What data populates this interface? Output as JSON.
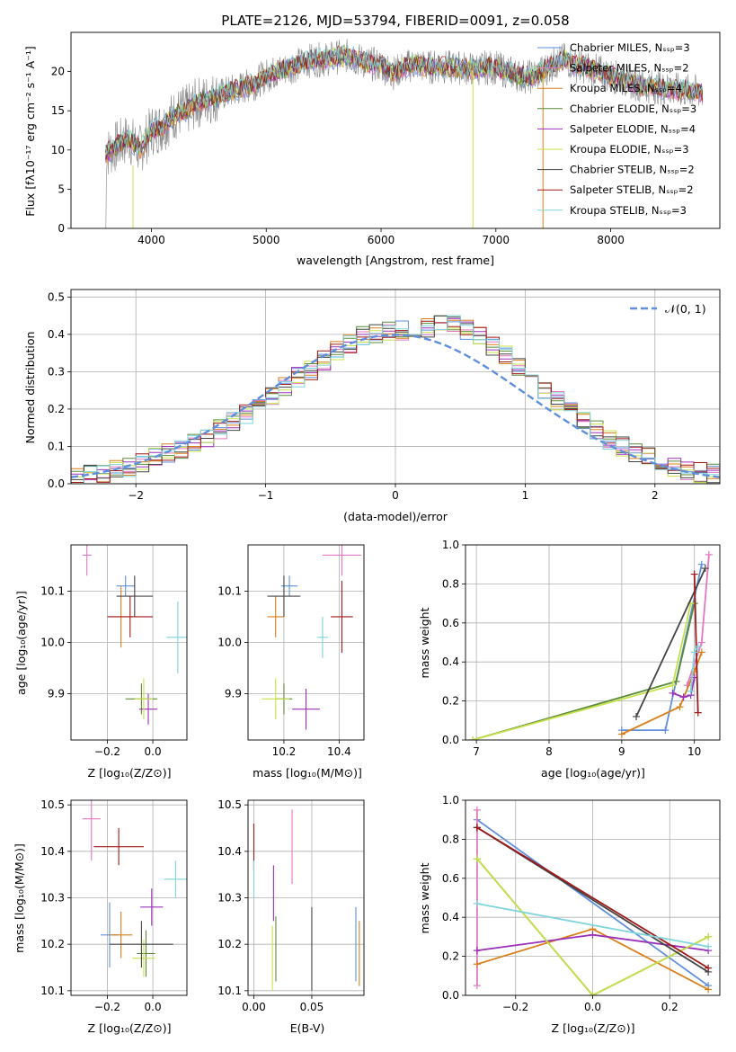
{
  "colors": {
    "palette": [
      "#5f8fdc",
      "#e377c2",
      "#d97f1a",
      "#5a8a3a",
      "#9b30b8",
      "#c8e04a",
      "#444444",
      "#a01818",
      "#7fd4dc"
    ],
    "spectrum_data": "#888888",
    "gaussian": "#5f8fdc",
    "grid": "#b0b0b0"
  },
  "spectrum": {
    "title": "PLATE=2126, MJD=53794, FIBERID=0091, z=0.058",
    "xlabel": "wavelength [Angstrom, rest frame]",
    "ylabel": "Flux [fλ10⁻¹⁷ erg cm⁻² s⁻¹ A⁻¹]",
    "legend": [
      "Chabrier MILES, Nₛₛₚ=3",
      "Salpeter MILES, Nₛₛₚ=2",
      "Kroupa MILES, Nₛₛₚ=4",
      "Chabrier ELODIE, Nₛₛₚ=3",
      "Salpeter ELODIE, Nₛₛₚ=4",
      "Kroupa ELODIE, Nₛₛₚ=3",
      "Chabrier STELIB, Nₛₛₚ=2",
      "Salpeter STELIB, Nₛₛₚ=2",
      "Kroupa STELIB, Nₛₛₚ=3"
    ]
  },
  "chart_data": [
    {
      "type": "line",
      "title": "PLATE=2126, MJD=53794, FIBERID=0091, z=0.058",
      "xlabel": "wavelength [Angstrom, rest frame]",
      "ylabel": "Flux [fλ10⁻¹⁷ erg cm⁻² s⁻¹ A⁻¹]",
      "xlim": [
        3300,
        8950
      ],
      "ylim": [
        0,
        25
      ],
      "xticks": [
        4000,
        5000,
        6000,
        7000,
        8000
      ],
      "yticks": [
        0,
        5,
        10,
        15,
        20
      ],
      "x": [
        3600,
        3700,
        3800,
        3900,
        4000,
        4100,
        4200,
        4300,
        4400,
        4500,
        4600,
        4700,
        4800,
        4900,
        5000,
        5100,
        5200,
        5300,
        5400,
        5500,
        5600,
        5700,
        5800,
        5900,
        6000,
        6100,
        6200,
        6300,
        6400,
        6500,
        6600,
        6700,
        6800,
        6900,
        7000,
        7100,
        7200,
        7300,
        7400,
        7500,
        7600,
        7700,
        7800,
        7900,
        8000,
        8100,
        8200,
        8300,
        8400,
        8500,
        8600,
        8700,
        8800
      ],
      "series": [
        {
          "name": "model",
          "values": [
            9.5,
            10.5,
            11.5,
            10,
            12.5,
            13,
            14.5,
            15,
            16,
            16.5,
            17,
            17.5,
            18,
            18.5,
            19.5,
            20,
            20.5,
            21,
            21.5,
            21.5,
            21.8,
            22,
            21.5,
            21,
            20.8,
            19.8,
            20.5,
            21,
            20.5,
            20.7,
            20.5,
            20.5,
            20.3,
            20.5,
            20.5,
            20,
            19.5,
            19.3,
            20,
            21,
            21.5,
            20.8,
            20.5,
            20,
            19.5,
            19,
            18.5,
            18.2,
            18,
            17.8,
            17.6,
            17.5,
            17.3
          ]
        }
      ],
      "legend": "top-right",
      "grid": false
    },
    {
      "type": "line",
      "xlabel": "(data-model)/error",
      "ylabel": "Normed distribution",
      "xlim": [
        -2.5,
        2.5
      ],
      "ylim": [
        0,
        0.52
      ],
      "xticks": [
        -2,
        -1,
        0,
        1,
        2
      ],
      "yticks": [
        0.0,
        0.1,
        0.2,
        0.3,
        0.4,
        0.5
      ],
      "legend_label": "𝒩(0, 1)",
      "legend": "top-right",
      "grid": true,
      "histogram_bins": [
        -2.6,
        -2.5,
        -2.4,
        -2.3,
        -2.2,
        -2.1,
        -2.0,
        -1.9,
        -1.8,
        -1.7,
        -1.6,
        -1.5,
        -1.4,
        -1.3,
        -1.2,
        -1.1,
        -1.0,
        -0.9,
        -0.8,
        -0.7,
        -0.6,
        -0.5,
        -0.4,
        -0.3,
        -0.2,
        -0.1,
        0.0,
        0.1,
        0.2,
        0.3,
        0.4,
        0.5,
        0.6,
        0.7,
        0.8,
        0.9,
        1.0,
        1.1,
        1.2,
        1.3,
        1.4,
        1.5,
        1.6,
        1.7,
        1.8,
        1.9,
        2.0,
        2.1,
        2.2,
        2.3,
        2.4,
        2.5
      ],
      "histogram_values": [
        0.015,
        0.02,
        0.025,
        0.03,
        0.035,
        0.045,
        0.055,
        0.07,
        0.08,
        0.095,
        0.11,
        0.125,
        0.145,
        0.165,
        0.185,
        0.205,
        0.235,
        0.26,
        0.285,
        0.305,
        0.33,
        0.355,
        0.375,
        0.395,
        0.405,
        0.41,
        0.41,
        0.415,
        0.42,
        0.43,
        0.43,
        0.41,
        0.395,
        0.365,
        0.345,
        0.315,
        0.285,
        0.255,
        0.225,
        0.195,
        0.17,
        0.145,
        0.12,
        0.1,
        0.085,
        0.07,
        0.055,
        0.045,
        0.035,
        0.03,
        0.025,
        0.02
      ]
    },
    {
      "type": "scatter",
      "xlabel": "Z [log₁₀(Z/Z⊙)]",
      "ylabel": "age  [log₁₀(age/yr)]",
      "xlim": [
        -0.36,
        0.15
      ],
      "ylim": [
        9.81,
        10.19
      ],
      "xticks": [
        -0.2,
        0.0
      ],
      "yticks": [
        9.9,
        10.0,
        10.1
      ],
      "points": [
        {
          "x": -0.12,
          "y": 10.11,
          "xerr": 0.04,
          "yerr": 0.02
        },
        {
          "x": -0.29,
          "y": 10.17,
          "xerr": 0.02,
          "yerr": 0.04
        },
        {
          "x": -0.14,
          "y": 10.05,
          "xerr": 0.06,
          "yerr": 0.06
        },
        {
          "x": -0.05,
          "y": 9.89,
          "xerr": 0.07,
          "yerr": 0.03
        },
        {
          "x": -0.02,
          "y": 9.87,
          "xerr": 0.04,
          "yerr": 0.03
        },
        {
          "x": -0.04,
          "y": 9.89,
          "xerr": 0.04,
          "yerr": 0.04
        },
        {
          "x": -0.08,
          "y": 10.09,
          "xerr": 0.08,
          "yerr": 0.04
        },
        {
          "x": -0.1,
          "y": 10.05,
          "xerr": 0.1,
          "yerr": 0.04
        },
        {
          "x": 0.11,
          "y": 10.01,
          "xerr": 0.05,
          "yerr": 0.07
        }
      ]
    },
    {
      "type": "scatter",
      "xlabel": "mass [log₁₀(M/M⊙)]",
      "xlim": [
        10.07,
        10.49
      ],
      "ylim": [
        9.81,
        10.19
      ],
      "xticks": [
        10.2,
        10.4
      ],
      "yticks": [
        9.9,
        10.0,
        10.1
      ],
      "points": [
        {
          "x": 10.22,
          "y": 10.11,
          "xerr": 0.03,
          "yerr": 0.02
        },
        {
          "x": 10.41,
          "y": 10.17,
          "xerr": 0.07,
          "yerr": 0.04
        },
        {
          "x": 10.17,
          "y": 10.05,
          "xerr": 0.03,
          "yerr": 0.04
        },
        {
          "x": 10.2,
          "y": 9.89,
          "xerr": 0.03,
          "yerr": 0.03
        },
        {
          "x": 10.28,
          "y": 9.87,
          "xerr": 0.05,
          "yerr": 0.04
        },
        {
          "x": 10.17,
          "y": 9.89,
          "xerr": 0.05,
          "yerr": 0.04
        },
        {
          "x": 10.2,
          "y": 10.09,
          "xerr": 0.06,
          "yerr": 0.04
        },
        {
          "x": 10.41,
          "y": 10.05,
          "xerr": 0.04,
          "yerr": 0.07
        },
        {
          "x": 10.34,
          "y": 10.01,
          "xerr": 0.02,
          "yerr": 0.04
        }
      ]
    },
    {
      "type": "line",
      "xlabel": "age  [log₁₀(age/yr)]",
      "ylabel": "mass weight",
      "xlim": [
        6.85,
        10.35
      ],
      "ylim": [
        0,
        1
      ],
      "xticks": [
        7,
        8,
        9,
        10
      ],
      "yticks": [
        0.0,
        0.2,
        0.4,
        0.6,
        0.8,
        1.0
      ],
      "grid": true,
      "series": [
        {
          "name": "Chabrier MILES",
          "x": [
            9.0,
            9.6,
            10.1
          ],
          "y": [
            0.05,
            0.05,
            0.9
          ]
        },
        {
          "name": "Salpeter MILES",
          "x": [
            9.9,
            10.1,
            10.2
          ],
          "y": [
            0.28,
            0.5,
            0.95
          ]
        },
        {
          "name": "Kroupa MILES",
          "x": [
            9.0,
            9.8,
            10.0,
            10.1
          ],
          "y": [
            0.03,
            0.17,
            0.35,
            0.45
          ]
        },
        {
          "name": "Chabrier ELODIE",
          "x": [
            6.95,
            9.75,
            10.0
          ],
          "y": [
            0.0,
            0.3,
            0.7
          ]
        },
        {
          "name": "Salpeter ELODIE",
          "x": [
            9.7,
            9.85,
            9.95,
            10.0
          ],
          "y": [
            0.24,
            0.22,
            0.23,
            0.32
          ]
        },
        {
          "name": "Kroupa ELODIE",
          "x": [
            6.95,
            9.7,
            9.95
          ],
          "y": [
            0.0,
            0.28,
            0.7
          ]
        },
        {
          "name": "Chabrier STELIB",
          "x": [
            9.2,
            10.15
          ],
          "y": [
            0.12,
            0.88
          ]
        },
        {
          "name": "Salpeter STELIB",
          "x": [
            10.0,
            10.05
          ],
          "y": [
            0.85,
            0.14
          ]
        },
        {
          "name": "Kroupa STELIB",
          "x": [
            9.95,
            10.0,
            10.05
          ],
          "y": [
            0.25,
            0.45,
            0.48
          ]
        }
      ]
    },
    {
      "type": "scatter",
      "xlabel": "Z [log₁₀(Z/Z⊙)]",
      "ylabel": "mass [log₁₀(M/M⊙)]",
      "xlim": [
        -0.36,
        0.15
      ],
      "ylim": [
        10.09,
        10.51
      ],
      "xticks": [
        -0.2,
        0.0
      ],
      "yticks": [
        10.1,
        10.2,
        10.3,
        10.4,
        10.5
      ],
      "points": [
        {
          "x": -0.19,
          "y": 10.22,
          "xerr": 0.04,
          "yerr": 0.07
        },
        {
          "x": -0.27,
          "y": 10.47,
          "xerr": 0.04,
          "yerr": 0.09
        },
        {
          "x": -0.14,
          "y": 10.22,
          "xerr": 0.05,
          "yerr": 0.05
        },
        {
          "x": -0.03,
          "y": 10.18,
          "xerr": 0.04,
          "yerr": 0.05
        },
        {
          "x": -0.005,
          "y": 10.28,
          "xerr": 0.05,
          "yerr": 0.04
        },
        {
          "x": -0.04,
          "y": 10.17,
          "xerr": 0.05,
          "yerr": 0.04
        },
        {
          "x": -0.05,
          "y": 10.2,
          "xerr": 0.14,
          "yerr": 0.05
        },
        {
          "x": -0.15,
          "y": 10.41,
          "xerr": 0.11,
          "yerr": 0.04
        },
        {
          "x": 0.1,
          "y": 10.34,
          "xerr": 0.05,
          "yerr": 0.04
        }
      ]
    },
    {
      "type": "scatter",
      "xlabel": "E(B-V)",
      "xlim": [
        -0.005,
        0.095
      ],
      "ylim": [
        10.09,
        10.51
      ],
      "xticks": [
        0.0,
        0.05
      ],
      "yticks": [
        10.1,
        10.2,
        10.3,
        10.4,
        10.5
      ],
      "points": [
        {
          "x": 0.088,
          "y": 10.2,
          "xerr": 0,
          "yerr": 0.08
        },
        {
          "x": 0.033,
          "y": 10.41,
          "xerr": 0,
          "yerr": 0.08
        },
        {
          "x": 0.091,
          "y": 10.18,
          "xerr": 0,
          "yerr": 0.07
        },
        {
          "x": 0.019,
          "y": 10.19,
          "xerr": 0,
          "yerr": 0.07
        },
        {
          "x": 0.017,
          "y": 10.31,
          "xerr": 0,
          "yerr": 0.06
        },
        {
          "x": 0.016,
          "y": 10.17,
          "xerr": 0,
          "yerr": 0.07
        },
        {
          "x": 0.05,
          "y": 10.19,
          "xerr": 0,
          "yerr": 0.09
        },
        {
          "x": 0.0,
          "y": 10.41,
          "xerr": 0,
          "yerr": 0.05
        },
        {
          "x": 0.0,
          "y": 10.34,
          "xerr": 0,
          "yerr": 0.04
        }
      ]
    },
    {
      "type": "line",
      "xlabel": "Z [log₁₀(Z/Z⊙)]",
      "ylabel": "mass weight",
      "xlim": [
        -0.33,
        0.33
      ],
      "ylim": [
        0,
        1
      ],
      "xticks": [
        -0.2,
        0.0,
        0.2
      ],
      "yticks": [
        0.0,
        0.2,
        0.4,
        0.6,
        0.8,
        1.0
      ],
      "grid": true,
      "series": [
        {
          "name": "Chabrier MILES",
          "x": [
            -0.3,
            0.3
          ],
          "y": [
            0.9,
            0.05
          ]
        },
        {
          "name": "Salpeter MILES",
          "x": [
            -0.3,
            -0.3
          ],
          "y": [
            0.05,
            0.95
          ]
        },
        {
          "name": "Kroupa MILES",
          "x": [
            -0.3,
            0.0,
            0.3
          ],
          "y": [
            0.16,
            0.34,
            0.03
          ]
        },
        {
          "name": "Chabrier ELODIE",
          "x": [
            -0.3,
            0.0,
            0.3
          ],
          "y": [
            0.7,
            0.0,
            0.3
          ]
        },
        {
          "name": "Salpeter ELODIE",
          "x": [
            -0.3,
            0.0,
            0.3
          ],
          "y": [
            0.23,
            0.31,
            0.23
          ]
        },
        {
          "name": "Kroupa ELODIE",
          "x": [
            -0.3,
            0.0,
            0.3
          ],
          "y": [
            0.7,
            0.0,
            0.3
          ]
        },
        {
          "name": "Chabrier STELIB",
          "x": [
            -0.3,
            0.3
          ],
          "y": [
            0.86,
            0.12
          ]
        },
        {
          "name": "Salpeter STELIB",
          "x": [
            -0.3,
            0.3
          ],
          "y": [
            0.86,
            0.14
          ]
        },
        {
          "name": "Kroupa STELIB",
          "x": [
            -0.3,
            0.3
          ],
          "y": [
            0.47,
            0.25
          ]
        }
      ]
    }
  ]
}
